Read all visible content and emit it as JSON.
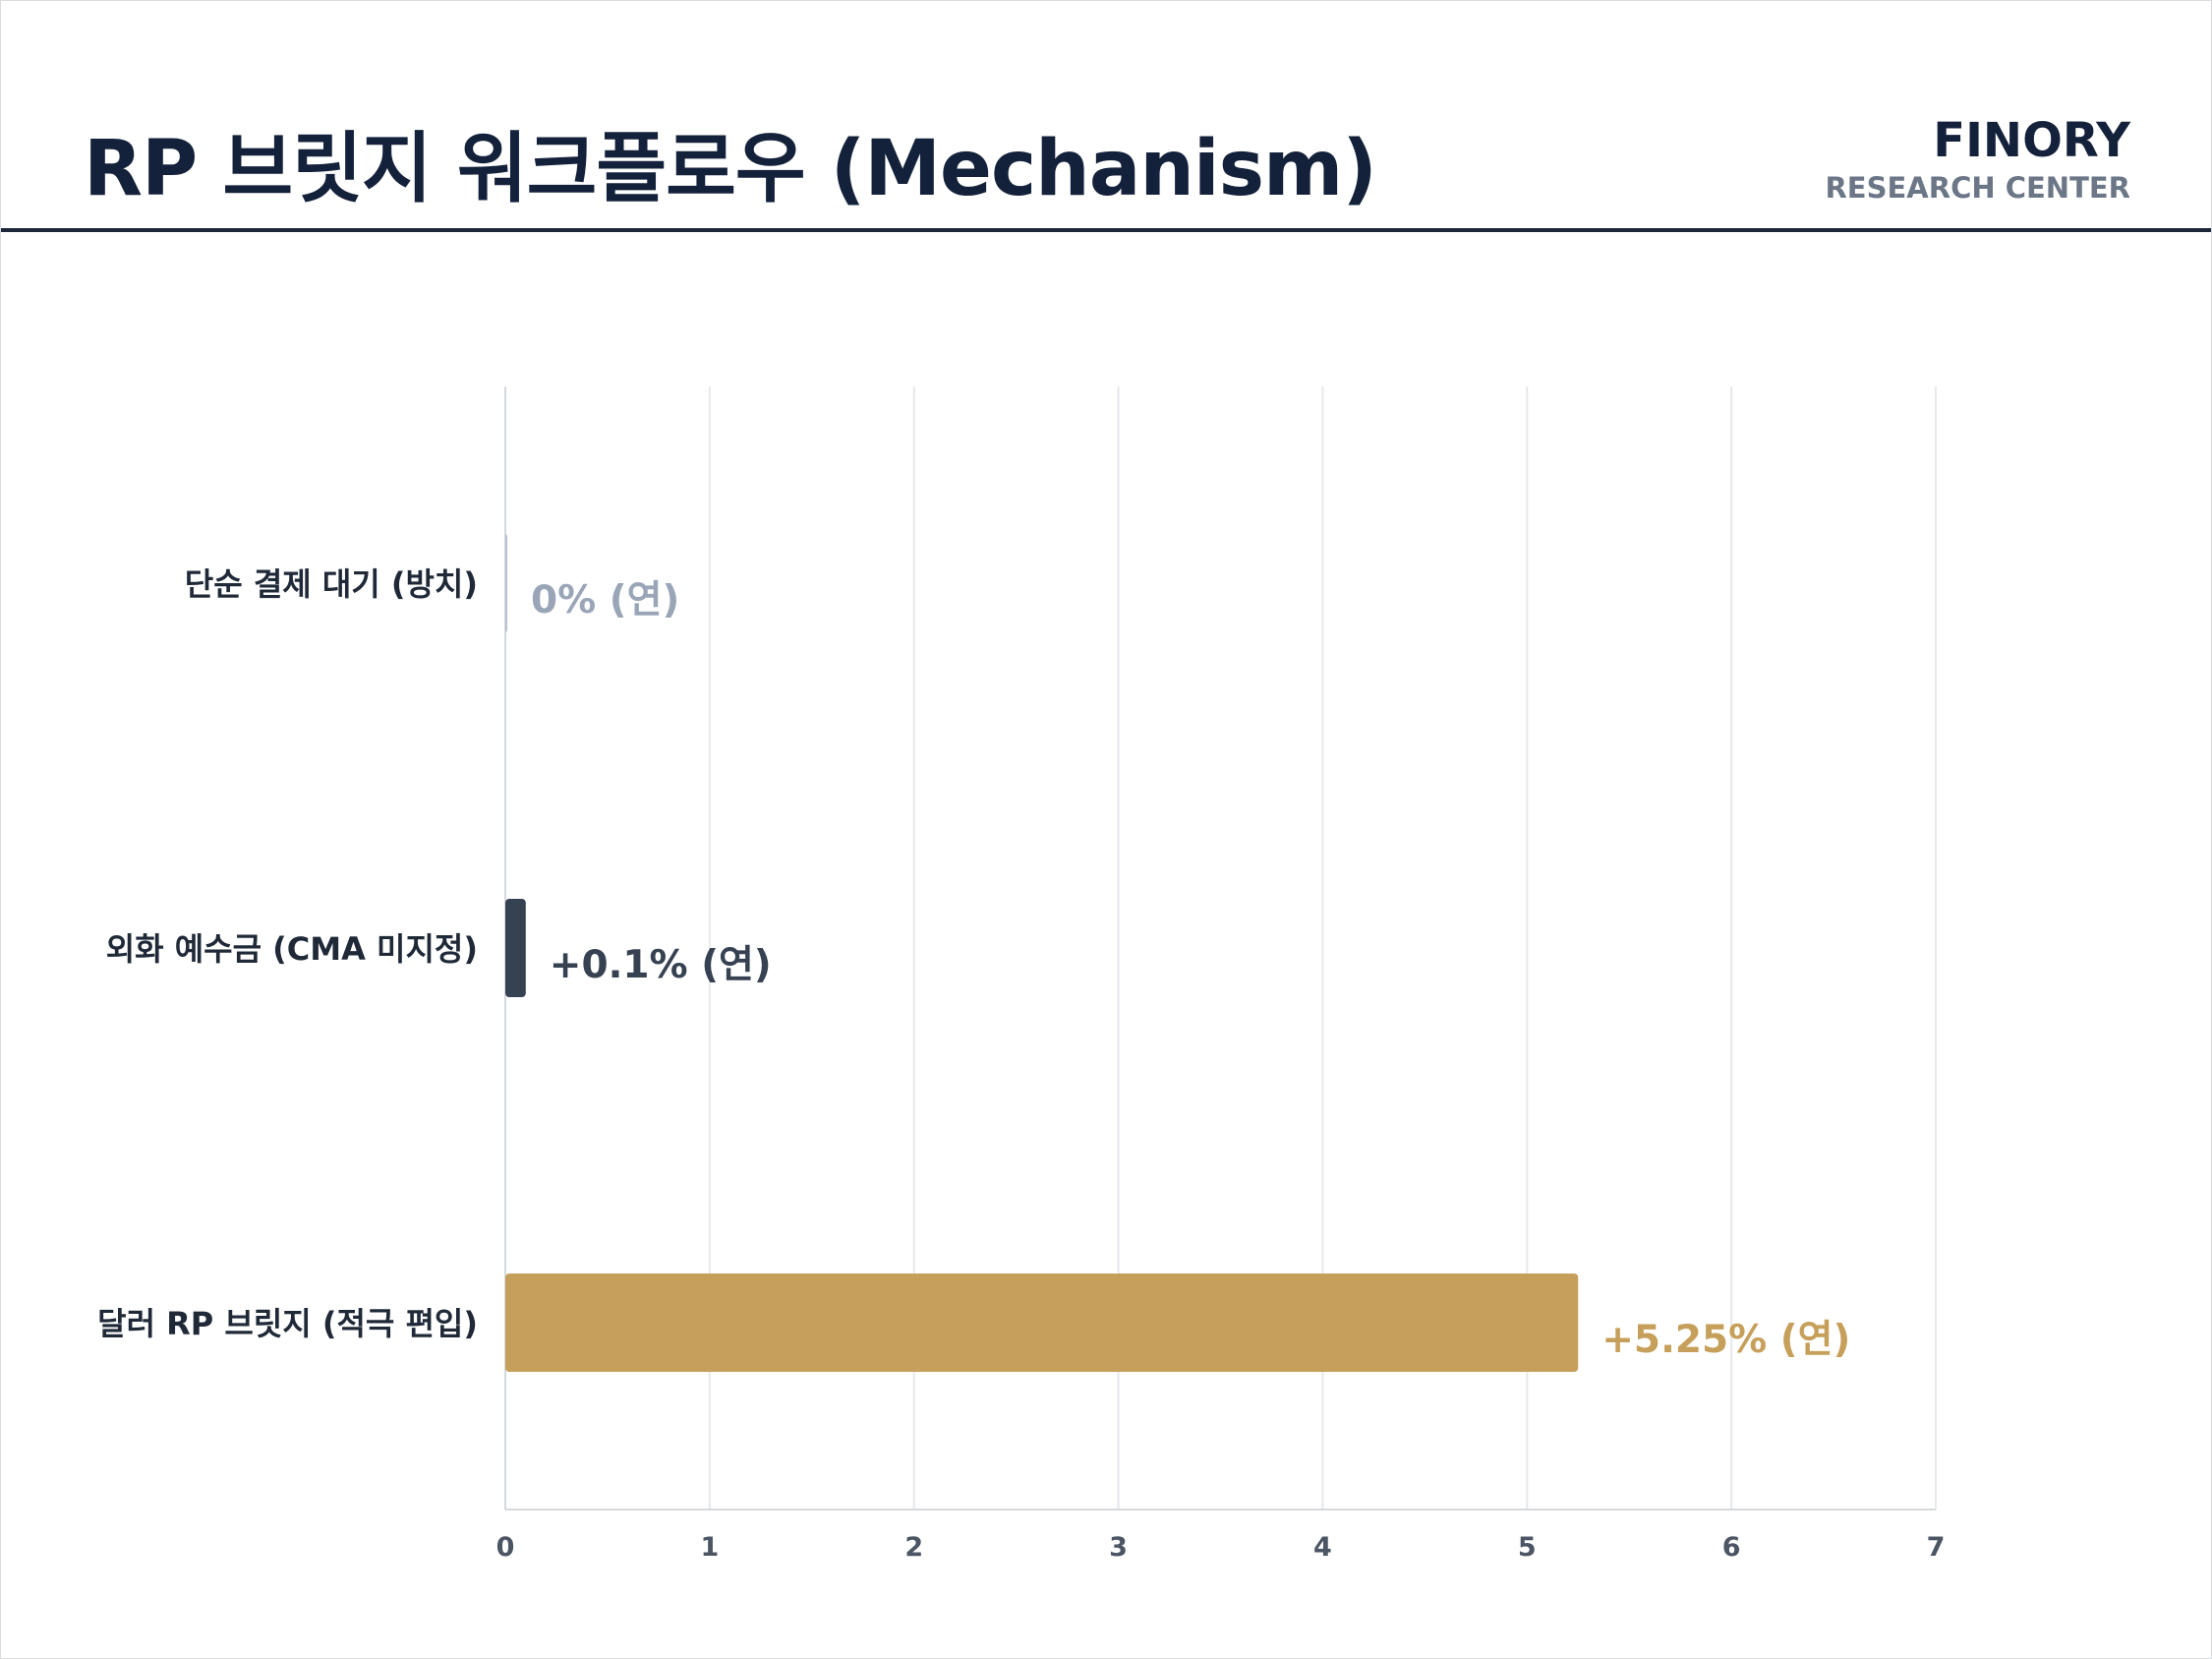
{
  "header": {
    "title": "RP 브릿지 워크플로우 (Mechanism)",
    "brand_name": "FINORY",
    "brand_sub": "RESEARCH CENTER"
  },
  "colors": {
    "title": "#14213a",
    "grid": "#e6e8eb",
    "axis": "#d5d9de",
    "tick": "#4b5563",
    "category_label": "#1f2937"
  },
  "chart_data": {
    "type": "bar",
    "orientation": "horizontal",
    "categories": [
      "단순 결제 대기 (방치)",
      "외화 예수금 (CMA 미지정)",
      "달러 RP 브릿지 (적극 편입)"
    ],
    "values": [
      0,
      0.1,
      5.25
    ],
    "data_labels": [
      "0% (연)",
      "+0.1% (연)",
      "+5.25% (연)"
    ],
    "bar_colors": [
      "#b8c1ce",
      "#364152",
      "#c6a05a"
    ],
    "label_colors": [
      "#9aa6b8",
      "#364152",
      "#c6a05a"
    ],
    "xlim": [
      0,
      7
    ],
    "xticks": [
      0,
      1,
      2,
      3,
      4,
      5,
      6,
      7
    ],
    "grid": "vertical",
    "legend": "none"
  }
}
